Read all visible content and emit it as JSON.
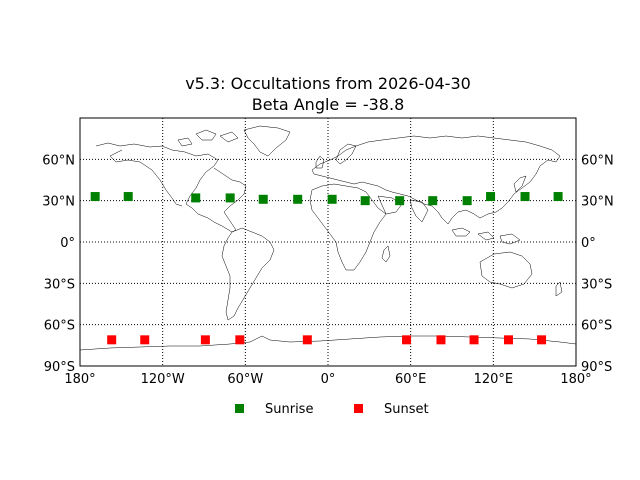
{
  "chart_data": {
    "type": "scatter",
    "title": "v5.3: Occultations from 2026-04-30",
    "subtitle": "Beta Angle = -38.8",
    "xlim": [
      -180,
      180
    ],
    "ylim": [
      -90,
      90
    ],
    "x_ticks": [
      -180,
      -120,
      -60,
      0,
      60,
      120,
      180
    ],
    "x_tick_labels": [
      "180°",
      "120°W",
      "60°W",
      "0°",
      "60°E",
      "120°E",
      "180°"
    ],
    "y_ticks": [
      -90,
      -60,
      -30,
      0,
      30,
      60
    ],
    "y_tick_labels": [
      "90°S",
      "60°S",
      "30°S",
      "0°",
      "30°N",
      "60°N"
    ],
    "grid": true,
    "legend_position": "bottom-center",
    "basemap": "world coastlines",
    "series": [
      {
        "name": "Sunrise",
        "color": "#008000",
        "marker": "square",
        "points": [
          [
            -169,
            33
          ],
          [
            -145,
            33
          ],
          [
            -96,
            32
          ],
          [
            -71,
            32
          ],
          [
            -47,
            31
          ],
          [
            -22,
            31
          ],
          [
            3,
            31
          ],
          [
            27,
            30
          ],
          [
            52,
            30
          ],
          [
            76,
            30
          ],
          [
            101,
            30
          ],
          [
            118,
            33
          ],
          [
            143,
            33
          ],
          [
            167,
            33
          ]
        ]
      },
      {
        "name": "Sunset",
        "color": "#ff0000",
        "marker": "square",
        "points": [
          [
            -157,
            -71
          ],
          [
            -133,
            -71
          ],
          [
            -89,
            -71
          ],
          [
            -64,
            -71
          ],
          [
            -15,
            -71
          ],
          [
            57,
            -71
          ],
          [
            82,
            -71
          ],
          [
            106,
            -71
          ],
          [
            131,
            -71
          ],
          [
            155,
            -71
          ]
        ]
      }
    ]
  }
}
